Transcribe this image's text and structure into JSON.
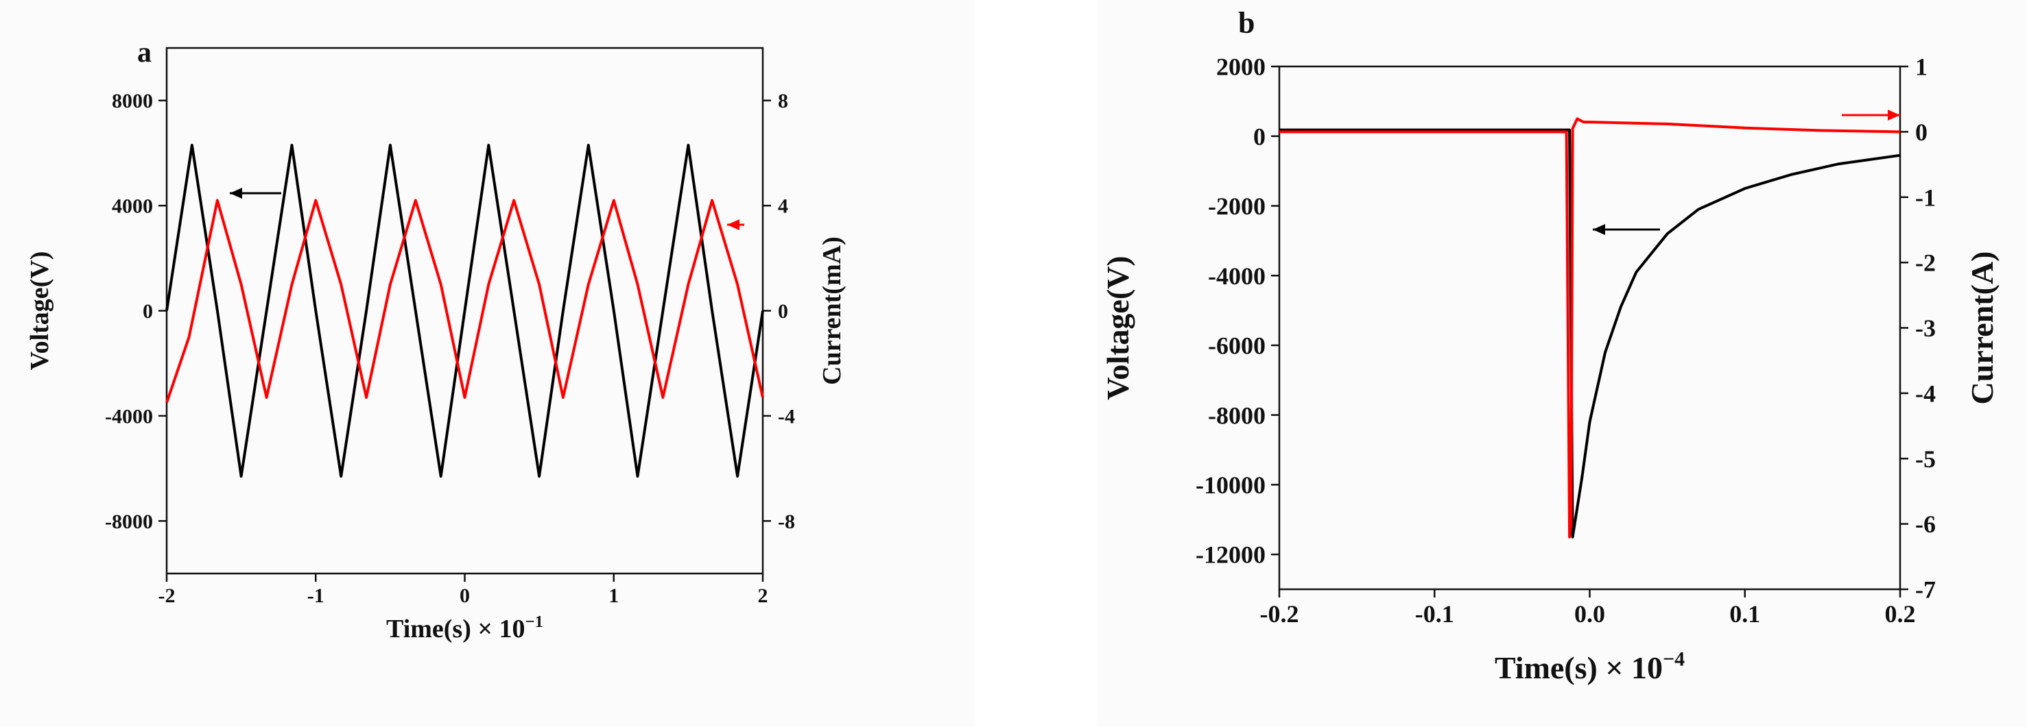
{
  "chart_data": [
    {
      "panel_label": "a",
      "type": "line",
      "xlabel": "Time(s) × 10",
      "xlabel_exponent": "−1",
      "ylabel_left": "Voltage(V)",
      "ylabel_right": "Current(mA)",
      "xlim": [
        -2,
        2
      ],
      "ylim_left": [
        -10000,
        10000
      ],
      "ylim_right": [
        -10,
        10
      ],
      "x_ticks": [
        "-2",
        "-1",
        "0",
        "1",
        "2"
      ],
      "left_ticks": [
        "8000",
        "4000",
        "0",
        "-4000",
        "-8000"
      ],
      "right_ticks": [
        "8",
        "4",
        "0",
        "-4",
        "-8"
      ],
      "grid": false,
      "series": [
        {
          "axis": "left",
          "color": "#000000",
          "x": [
            -2.0,
            -1.83,
            -1.66,
            -1.5,
            -1.33,
            -1.16,
            -1.0,
            -0.83,
            -0.66,
            -0.5,
            -0.33,
            -0.16,
            0.0,
            0.16,
            0.33,
            0.5,
            0.66,
            0.83,
            1.0,
            1.16,
            1.33,
            1.5,
            1.66,
            1.83,
            2.0
          ],
          "y": [
            0,
            6300,
            0,
            -6300,
            0,
            6300,
            0,
            -6300,
            0,
            6300,
            0,
            -6300,
            0,
            6300,
            0,
            -6300,
            0,
            6300,
            0,
            -6300,
            0,
            6300,
            0,
            -6300,
            0
          ]
        },
        {
          "axis": "right",
          "color": "#ff0000",
          "x": [
            -2.0,
            -1.85,
            -1.66,
            -1.5,
            -1.33,
            -1.16,
            -1.0,
            -0.83,
            -0.66,
            -0.5,
            -0.33,
            -0.16,
            0.0,
            0.16,
            0.33,
            0.5,
            0.66,
            0.83,
            1.0,
            1.16,
            1.33,
            1.5,
            1.66,
            1.83,
            2.0
          ],
          "y": [
            -3.5,
            -1.0,
            4.2,
            1.0,
            -3.3,
            1.0,
            4.2,
            1.0,
            -3.3,
            1.0,
            4.2,
            1.0,
            -3.3,
            1.0,
            4.2,
            1.0,
            -3.3,
            1.0,
            4.2,
            1.0,
            -3.3,
            1.0,
            4.2,
            1.0,
            -3.3
          ]
        }
      ]
    },
    {
      "panel_label": "b",
      "type": "line",
      "xlabel": "Time(s) × 10",
      "xlabel_exponent": "−4",
      "ylabel_left": "Voltage(V)",
      "ylabel_right": "Current(A)",
      "xlim": [
        -0.2,
        0.2
      ],
      "ylim_left": [
        -13000,
        2000
      ],
      "ylim_right": [
        -7,
        1
      ],
      "x_ticks": [
        "-0.2",
        "-0.1",
        "0.0",
        "0.1",
        "0.2"
      ],
      "left_ticks": [
        "2000",
        "0",
        "-2000",
        "-4000",
        "-6000",
        "-8000",
        "-10000",
        "-12000"
      ],
      "right_ticks": [
        "1",
        "0",
        "-1",
        "-2",
        "-3",
        "-4",
        "-5",
        "-6",
        "-7"
      ],
      "grid": false,
      "series": [
        {
          "axis": "left",
          "color": "#000000",
          "x": [
            -0.2,
            -0.1,
            -0.013,
            -0.011,
            -0.005,
            0.0,
            0.01,
            0.02,
            0.03,
            0.05,
            0.07,
            0.1,
            0.13,
            0.16,
            0.2
          ],
          "y": [
            180,
            180,
            180,
            -11500,
            -9800,
            -8200,
            -6200,
            -4900,
            -3900,
            -2800,
            -2100,
            -1500,
            -1100,
            -800,
            -550
          ]
        },
        {
          "axis": "right",
          "color": "#ff0000",
          "x": [
            -0.2,
            -0.1,
            -0.015,
            -0.013,
            -0.012,
            -0.011,
            -0.008,
            -0.004,
            0.0,
            0.05,
            0.1,
            0.15,
            0.2
          ],
          "y": [
            0.0,
            0.0,
            0.0,
            -6.2,
            -6.0,
            0.05,
            0.2,
            0.15,
            0.15,
            0.12,
            0.06,
            0.02,
            0.0
          ]
        }
      ]
    }
  ]
}
